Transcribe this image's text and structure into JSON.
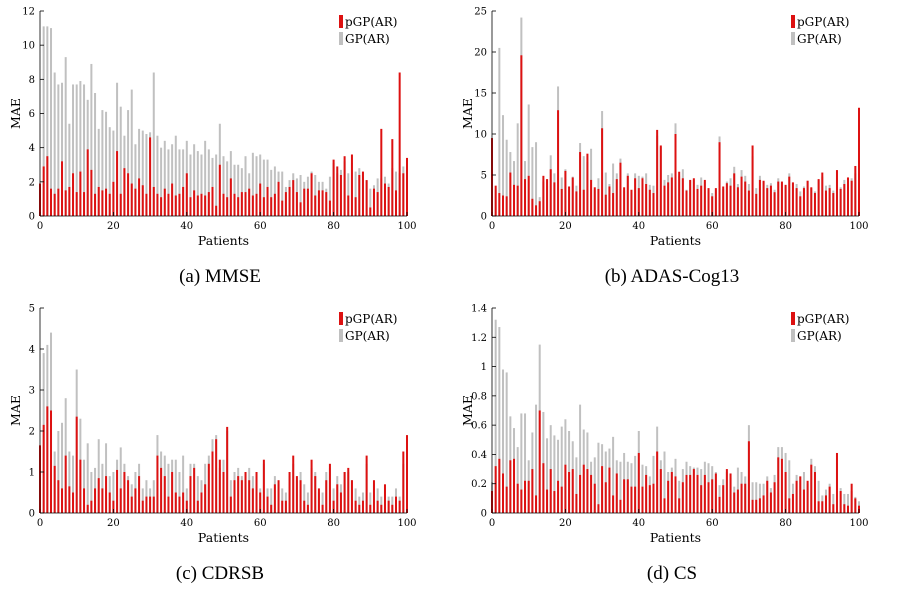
{
  "series_colors": {
    "pgp": "#dd1111",
    "gp": "#c0c0c0"
  },
  "chart_data": [
    {
      "type": "bar",
      "caption": "(a) MMSE",
      "xlabel": "Patients",
      "ylabel": "MAE",
      "xlim": [
        0,
        100
      ],
      "ylim": [
        0,
        12
      ],
      "xticks": [
        0,
        20,
        40,
        60,
        80,
        100
      ],
      "yticks": [
        0,
        2,
        4,
        6,
        8,
        10,
        12
      ],
      "legend": "top-right",
      "series": [
        {
          "name": "pGP(AR)",
          "values": [
            1.9,
            2.9,
            3.5,
            1.6,
            1.3,
            1.6,
            3.2,
            1.5,
            1.7,
            2.5,
            1.4,
            2.6,
            1.4,
            3.9,
            2.7,
            1.3,
            1.7,
            1.5,
            1.6,
            1.3,
            2.0,
            3.8,
            1.3,
            2.8,
            2.5,
            1.9,
            1.6,
            2.2,
            1.8,
            1.3,
            4.6,
            1.7,
            1.3,
            1.1,
            1.6,
            1.3,
            1.9,
            1.2,
            1.3,
            1.7,
            2.5,
            1.1,
            1.5,
            1.2,
            1.3,
            1.2,
            1.4,
            1.7,
            0.6,
            3.0,
            1.3,
            1.1,
            2.2,
            1.3,
            1.1,
            1.4,
            1.4,
            1.6,
            1.2,
            1.3,
            1.9,
            1.1,
            1.7,
            1.1,
            1.3,
            2.0,
            0.9,
            1.4,
            1.7,
            2.1,
            1.4,
            0.8,
            1.6,
            1.6,
            2.5,
            1.2,
            1.5,
            1.5,
            1.4,
            0.9,
            3.3,
            2.9,
            2.4,
            3.5,
            1.2,
            3.6,
            1.1,
            2.4,
            2.6,
            2.1,
            0.5,
            1.6,
            1.4,
            5.1,
            1.9,
            1.7,
            4.5,
            1.5,
            8.4,
            2.5,
            3.4
          ]
        },
        {
          "name": "GP(AR)",
          "values": [
            1.5,
            11.1,
            11.1,
            11.0,
            8.4,
            7.7,
            7.8,
            9.3,
            5.4,
            7.7,
            7.7,
            7.9,
            7.7,
            6.8,
            8.9,
            7.2,
            5.1,
            6.2,
            6.1,
            5.2,
            5.0,
            7.8,
            6.4,
            4.7,
            6.2,
            7.4,
            4.2,
            5.1,
            5.0,
            4.8,
            4.9,
            8.4,
            4.7,
            4.0,
            4.4,
            3.9,
            4.2,
            4.7,
            3.9,
            3.9,
            4.4,
            3.6,
            4.2,
            3.8,
            3.6,
            4.4,
            3.9,
            3.4,
            3.6,
            5.4,
            3.5,
            3.2,
            3.8,
            3.0,
            3.0,
            2.8,
            3.5,
            2.5,
            3.7,
            3.5,
            3.6,
            3.3,
            3.3,
            2.7,
            2.9,
            2.6,
            2.6,
            1.7,
            2.1,
            2.5,
            2.2,
            2.4,
            2.0,
            2.3,
            2.6,
            2.4,
            2.0,
            2.0,
            1.6,
            2.3,
            3.1,
            2.5,
            2.7,
            3.2,
            2.5,
            3.1,
            2.6,
            2.8,
            2.5,
            2.1,
            1.6,
            1.8,
            2.2,
            2.2,
            2.3,
            1.9,
            2.8,
            2.6,
            2.5,
            2.9,
            1.2
          ]
        }
      ]
    },
    {
      "type": "bar",
      "caption": "(b) ADAS-Cog13",
      "xlabel": "Patients",
      "ylabel": "MAE",
      "xlim": [
        0,
        100
      ],
      "ylim": [
        0,
        25
      ],
      "xticks": [
        0,
        20,
        40,
        60,
        80,
        100
      ],
      "yticks": [
        0,
        5,
        10,
        15,
        20,
        25
      ],
      "legend": "top-right",
      "series": [
        {
          "name": "pGP(AR)",
          "values": [
            9.5,
            3.7,
            2.8,
            2.5,
            2.4,
            5.3,
            3.8,
            3.7,
            19.6,
            4.5,
            4.9,
            2.1,
            1.3,
            1.8,
            4.9,
            4.5,
            5.7,
            4.1,
            12.9,
            3.3,
            5.5,
            3.6,
            4.7,
            3.0,
            7.8,
            3.2,
            7.6,
            4.4,
            3.5,
            3.3,
            10.7,
            2.6,
            3.6,
            2.8,
            4.5,
            6.5,
            3.5,
            4.9,
            3.2,
            4.6,
            3.4,
            4.6,
            3.9,
            3.2,
            2.8,
            10.5,
            8.6,
            3.7,
            4.1,
            4.7,
            10.0,
            5.4,
            4.6,
            3.1,
            4.4,
            4.6,
            3.3,
            3.7,
            4.4,
            3.4,
            2.4,
            3.4,
            9.0,
            3.6,
            4.0,
            3.7,
            5.2,
            3.5,
            4.8,
            4.2,
            3.1,
            8.6,
            2.7,
            4.4,
            4.3,
            3.4,
            3.7,
            2.9,
            4.2,
            4.2,
            3.8,
            4.8,
            4.1,
            3.4,
            2.4,
            3.4,
            4.3,
            3.5,
            2.8,
            4.5,
            5.3,
            3.1,
            3.4,
            2.8,
            5.6,
            3.3,
            3.9,
            4.7,
            4.3,
            6.1,
            13.2
          ]
        },
        {
          "name": "GP(AR)",
          "values": [
            9.5,
            3.2,
            20.5,
            12.3,
            9.3,
            7.8,
            6.7,
            11.3,
            24.2,
            6.7,
            13.6,
            8.4,
            9.0,
            2.3,
            4.2,
            3.7,
            7.4,
            5.2,
            15.8,
            4.7,
            5.7,
            3.2,
            4.8,
            3.7,
            8.9,
            7.3,
            6.6,
            8.2,
            3.2,
            4.6,
            12.8,
            5.3,
            3.9,
            6.4,
            5.2,
            7.0,
            3.1,
            5.2,
            2.8,
            5.2,
            4.9,
            4.8,
            5.2,
            3.8,
            3.7,
            9.8,
            8.4,
            4.4,
            5.0,
            5.2,
            11.3,
            4.9,
            5.7,
            3.2,
            4.3,
            4.4,
            3.8,
            4.7,
            4.2,
            3.1,
            2.8,
            3.2,
            9.7,
            3.3,
            4.2,
            4.6,
            6.0,
            3.9,
            5.6,
            4.9,
            3.9,
            7.3,
            3.4,
            4.9,
            4.2,
            3.8,
            4.0,
            3.2,
            4.6,
            4.0,
            3.6,
            5.2,
            4.0,
            3.9,
            3.0,
            3.6,
            4.3,
            3.4,
            3.0,
            4.4,
            4.8,
            3.7,
            3.8,
            3.1,
            4.6,
            3.5,
            4.4,
            4.7,
            4.6,
            5.2,
            10.1
          ]
        }
      ]
    },
    {
      "type": "bar",
      "caption": "(c) CDRSB",
      "xlabel": "Patients",
      "ylabel": "MAE",
      "xlim": [
        0,
        100
      ],
      "ylim": [
        0,
        5
      ],
      "xticks": [
        0,
        20,
        40,
        60,
        80,
        100
      ],
      "yticks": [
        0,
        1,
        2,
        3,
        4,
        5
      ],
      "legend": "top-right",
      "series": [
        {
          "name": "pGP(AR)",
          "values": [
            1.65,
            2.15,
            2.6,
            2.5,
            1.15,
            0.8,
            0.6,
            1.4,
            0.65,
            0.5,
            2.35,
            1.3,
            0.6,
            0.2,
            0.3,
            0.6,
            0.85,
            0.6,
            0.9,
            0.5,
            0.3,
            1.05,
            0.6,
            1.0,
            0.8,
            0.4,
            0.6,
            0.9,
            0.3,
            0.4,
            0.4,
            0.4,
            1.4,
            1.1,
            0.9,
            0.4,
            1.0,
            0.5,
            0.4,
            0.5,
            0.3,
            0.9,
            1.1,
            0.3,
            0.5,
            0.7,
            1.2,
            1.5,
            1.8,
            1.3,
            1.0,
            2.1,
            0.4,
            0.8,
            0.9,
            0.8,
            1.0,
            0.8,
            0.6,
            1.0,
            0.5,
            1.3,
            0.4,
            0.2,
            0.7,
            0.8,
            0.3,
            0.3,
            1.0,
            1.4,
            0.9,
            0.8,
            0.3,
            0.2,
            1.3,
            0.9,
            0.6,
            0.2,
            0.8,
            1.2,
            0.3,
            0.7,
            0.5,
            1.0,
            1.1,
            0.8,
            0.3,
            0.2,
            0.3,
            1.4,
            0.2,
            0.8,
            0.3,
            0.2,
            0.7,
            0.3,
            0.2,
            0.4,
            0.3,
            1.5,
            1.9
          ]
        },
        {
          "name": "GP(AR)",
          "values": [
            1.2,
            3.9,
            4.1,
            4.4,
            1.5,
            2.0,
            2.2,
            2.8,
            1.5,
            1.4,
            3.5,
            2.3,
            1.3,
            1.7,
            1.0,
            1.1,
            1.8,
            1.2,
            1.7,
            0.9,
            1.0,
            1.3,
            1.6,
            1.2,
            0.9,
            0.7,
            1.0,
            1.2,
            0.6,
            0.8,
            0.6,
            0.8,
            1.9,
            1.5,
            1.4,
            1.2,
            1.3,
            1.3,
            1.0,
            1.4,
            0.6,
            1.2,
            1.2,
            0.9,
            0.8,
            1.2,
            1.4,
            1.8,
            1.9,
            1.1,
            1.3,
            2.0,
            0.8,
            1.0,
            1.1,
            0.9,
            1.0,
            1.1,
            0.9,
            0.8,
            0.6,
            1.2,
            0.6,
            0.6,
            0.9,
            0.7,
            0.6,
            0.5,
            0.9,
            1.2,
            0.8,
            1.0,
            0.7,
            0.5,
            1.1,
            1.0,
            0.5,
            0.5,
            1.0,
            1.1,
            0.6,
            0.9,
            0.7,
            1.0,
            1.0,
            0.8,
            0.6,
            0.4,
            0.5,
            1.2,
            0.5,
            0.7,
            0.6,
            0.4,
            0.6,
            0.4,
            0.4,
            0.6,
            0.4,
            1.2,
            1.6
          ]
        }
      ]
    },
    {
      "type": "bar",
      "caption": "(d) CS",
      "xlabel": "Patients",
      "ylabel": "MAE",
      "xlim": [
        0,
        100
      ],
      "ylim": [
        0,
        1.4
      ],
      "xticks": [
        0,
        20,
        40,
        60,
        80,
        100
      ],
      "yticks": [
        0,
        0.2,
        0.4,
        0.6,
        0.8,
        1,
        1.2,
        1.4
      ],
      "legend": "top-right",
      "series": [
        {
          "name": "pGP(AR)",
          "values": [
            0.15,
            0.32,
            0.37,
            0.27,
            0.18,
            0.36,
            0.37,
            0.2,
            0.16,
            0.22,
            0.22,
            0.3,
            0.12,
            0.7,
            0.34,
            0.16,
            0.3,
            0.15,
            0.22,
            0.18,
            0.33,
            0.28,
            0.3,
            0.13,
            0.26,
            0.33,
            0.3,
            0.26,
            0.2,
            0.06,
            0.32,
            0.21,
            0.31,
            0.12,
            0.27,
            0.09,
            0.23,
            0.23,
            0.18,
            0.18,
            0.41,
            0.18,
            0.26,
            0.19,
            0.2,
            0.42,
            0.3,
            0.1,
            0.22,
            0.28,
            0.25,
            0.1,
            0.21,
            0.26,
            0.26,
            0.3,
            0.26,
            0.19,
            0.26,
            0.21,
            0.23,
            0.27,
            0.11,
            0.19,
            0.3,
            0.27,
            0.14,
            0.16,
            0.2,
            0.2,
            0.49,
            0.09,
            0.09,
            0.1,
            0.12,
            0.22,
            0.14,
            0.21,
            0.38,
            0.37,
            0.28,
            0.1,
            0.13,
            0.22,
            0.25,
            0.16,
            0.22,
            0.33,
            0.28,
            0.08,
            0.08,
            0.12,
            0.18,
            0.06,
            0.41,
            0.15,
            0.06,
            0.05,
            0.2,
            0.1,
            0.05
          ]
        },
        {
          "name": "GP(AR)",
          "values": [
            0.21,
            1.32,
            1.27,
            0.98,
            0.96,
            0.66,
            0.58,
            0.45,
            0.68,
            0.68,
            0.36,
            0.55,
            0.74,
            1.15,
            0.69,
            0.51,
            0.6,
            0.53,
            0.5,
            0.59,
            0.64,
            0.56,
            0.49,
            0.38,
            0.74,
            0.57,
            0.55,
            0.35,
            0.38,
            0.48,
            0.47,
            0.42,
            0.44,
            0.52,
            0.36,
            0.35,
            0.41,
            0.35,
            0.34,
            0.39,
            0.56,
            0.33,
            0.32,
            0.25,
            0.39,
            0.59,
            0.36,
            0.42,
            0.28,
            0.31,
            0.37,
            0.22,
            0.3,
            0.35,
            0.32,
            0.31,
            0.31,
            0.3,
            0.35,
            0.34,
            0.32,
            0.28,
            0.19,
            0.23,
            0.28,
            0.24,
            0.18,
            0.31,
            0.28,
            0.25,
            0.6,
            0.21,
            0.21,
            0.2,
            0.2,
            0.25,
            0.17,
            0.26,
            0.45,
            0.45,
            0.41,
            0.36,
            0.2,
            0.26,
            0.25,
            0.28,
            0.2,
            0.37,
            0.32,
            0.22,
            0.12,
            0.16,
            0.2,
            0.13,
            0.34,
            0.17,
            0.13,
            0.13,
            0.15,
            0.11,
            0.08
          ]
        }
      ]
    }
  ]
}
